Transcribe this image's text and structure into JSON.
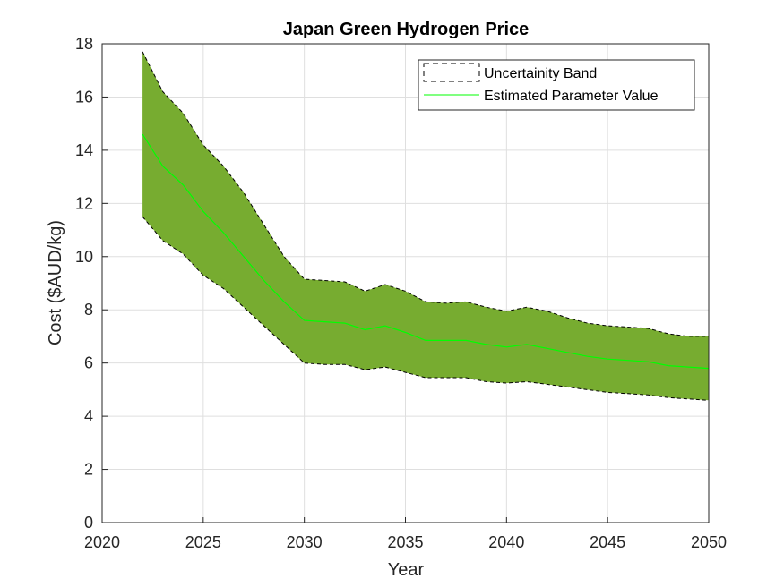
{
  "chart_data": {
    "type": "area",
    "title": "Japan Green Hydrogen Price",
    "xlabel": "Year",
    "ylabel": "Cost ($AUD/kg)",
    "xlim": [
      2020,
      2050
    ],
    "ylim": [
      0,
      18
    ],
    "xticks": [
      2020,
      2025,
      2030,
      2035,
      2040,
      2045,
      2050
    ],
    "yticks": [
      0,
      2,
      4,
      6,
      8,
      10,
      12,
      14,
      16,
      18
    ],
    "grid": true,
    "legend_position": "top-right",
    "x": [
      2022,
      2023,
      2024,
      2025,
      2026,
      2027,
      2028,
      2029,
      2030,
      2031,
      2032,
      2033,
      2034,
      2035,
      2036,
      2037,
      2038,
      2039,
      2040,
      2041,
      2042,
      2043,
      2044,
      2045,
      2046,
      2047,
      2048,
      2049,
      2050
    ],
    "series": [
      {
        "name": "Uncertainity Band",
        "kind": "band",
        "upper": [
          17.7,
          16.2,
          15.4,
          14.2,
          13.4,
          12.4,
          11.2,
          10.0,
          9.15,
          9.1,
          9.05,
          8.7,
          8.95,
          8.7,
          8.3,
          8.25,
          8.3,
          8.1,
          7.95,
          8.1,
          7.95,
          7.7,
          7.5,
          7.4,
          7.35,
          7.3,
          7.1,
          7.0,
          7.0
        ],
        "lower": [
          11.5,
          10.6,
          10.1,
          9.3,
          8.8,
          8.1,
          7.4,
          6.7,
          6.0,
          5.95,
          5.95,
          5.75,
          5.85,
          5.65,
          5.45,
          5.45,
          5.45,
          5.3,
          5.25,
          5.3,
          5.2,
          5.1,
          5.0,
          4.9,
          4.85,
          4.8,
          4.7,
          4.65,
          4.6
        ],
        "fill_color": "#77ac30",
        "edge_color": "#000000"
      },
      {
        "name": "Estimated Parameter Value",
        "kind": "line",
        "values": [
          14.6,
          13.4,
          12.7,
          11.7,
          10.9,
          10.0,
          9.1,
          8.3,
          7.6,
          7.55,
          7.5,
          7.25,
          7.4,
          7.15,
          6.85,
          6.85,
          6.85,
          6.7,
          6.6,
          6.7,
          6.55,
          6.4,
          6.25,
          6.15,
          6.1,
          6.05,
          5.9,
          5.85,
          5.8
        ],
        "color": "#00ff00"
      }
    ]
  }
}
